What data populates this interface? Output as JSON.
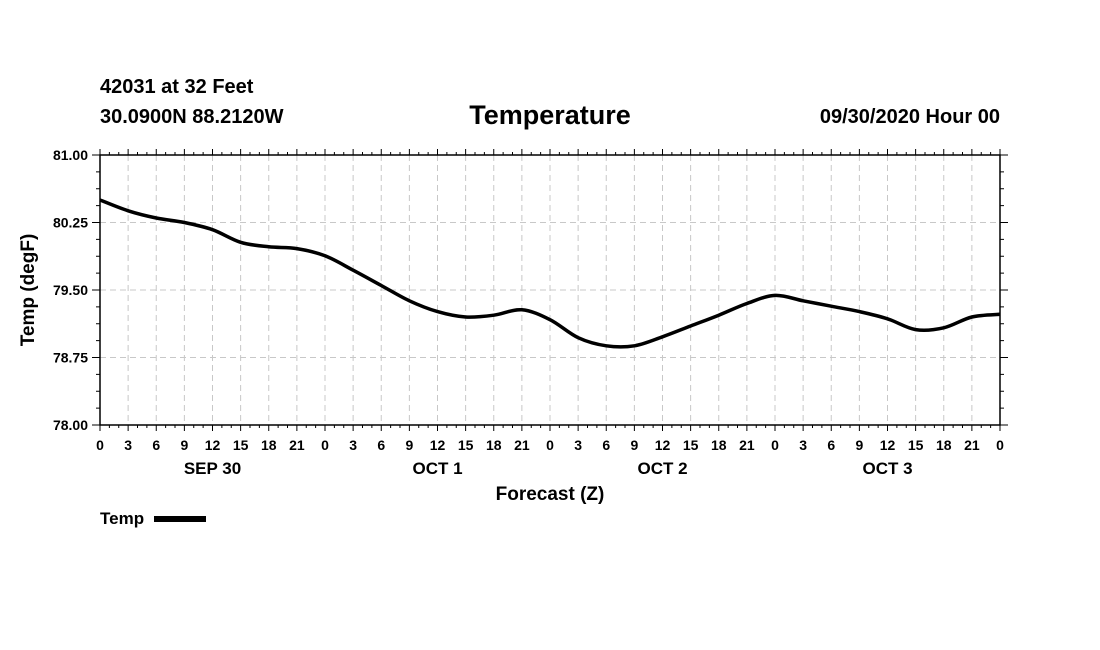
{
  "header": {
    "station": "42031 at 32 Feet",
    "location": "30.0900N 88.2120W",
    "title": "Temperature",
    "run_time": "09/30/2020 Hour 00"
  },
  "legend": {
    "label": "Temp"
  },
  "chart_data": {
    "type": "line",
    "title": "Temperature",
    "xlabel": "Forecast (Z)",
    "ylabel": "Temp (degF)",
    "ylim": [
      78.0,
      81.0
    ],
    "yticks": [
      "78.00",
      "78.75",
      "79.50",
      "80.25",
      "81.00"
    ],
    "xlim": [
      0,
      96
    ],
    "xtick_step_hours": 3,
    "xtick_labels": [
      "0",
      "3",
      "6",
      "9",
      "12",
      "15",
      "18",
      "21",
      "0",
      "3",
      "6",
      "9",
      "12",
      "15",
      "18",
      "21",
      "0",
      "3",
      "6",
      "9",
      "12",
      "15",
      "18",
      "21",
      "0",
      "3",
      "6",
      "9",
      "12",
      "15",
      "18",
      "21",
      "0"
    ],
    "day_labels": [
      {
        "label": "SEP 30",
        "center_hour": 12
      },
      {
        "label": "OCT 1",
        "center_hour": 36
      },
      {
        "label": "OCT 2",
        "center_hour": 60
      },
      {
        "label": "OCT 3",
        "center_hour": 84
      }
    ],
    "grid": true,
    "legend_position": "bottom-left",
    "series": [
      {
        "name": "Temp",
        "color": "#000000",
        "x": [
          0,
          3,
          6,
          9,
          12,
          15,
          18,
          21,
          24,
          27,
          30,
          33,
          36,
          39,
          42,
          45,
          48,
          51,
          54,
          57,
          60,
          63,
          66,
          69,
          72,
          75,
          78,
          81,
          84,
          87,
          90,
          93,
          96
        ],
        "values": [
          80.5,
          80.38,
          80.3,
          80.25,
          80.17,
          80.03,
          79.98,
          79.96,
          79.88,
          79.72,
          79.55,
          79.38,
          79.26,
          79.2,
          79.22,
          79.28,
          79.17,
          78.97,
          78.88,
          78.88,
          78.98,
          79.1,
          79.22,
          79.35,
          79.44,
          79.38,
          79.32,
          79.26,
          79.18,
          79.06,
          79.08,
          79.2,
          79.23
        ]
      }
    ]
  }
}
